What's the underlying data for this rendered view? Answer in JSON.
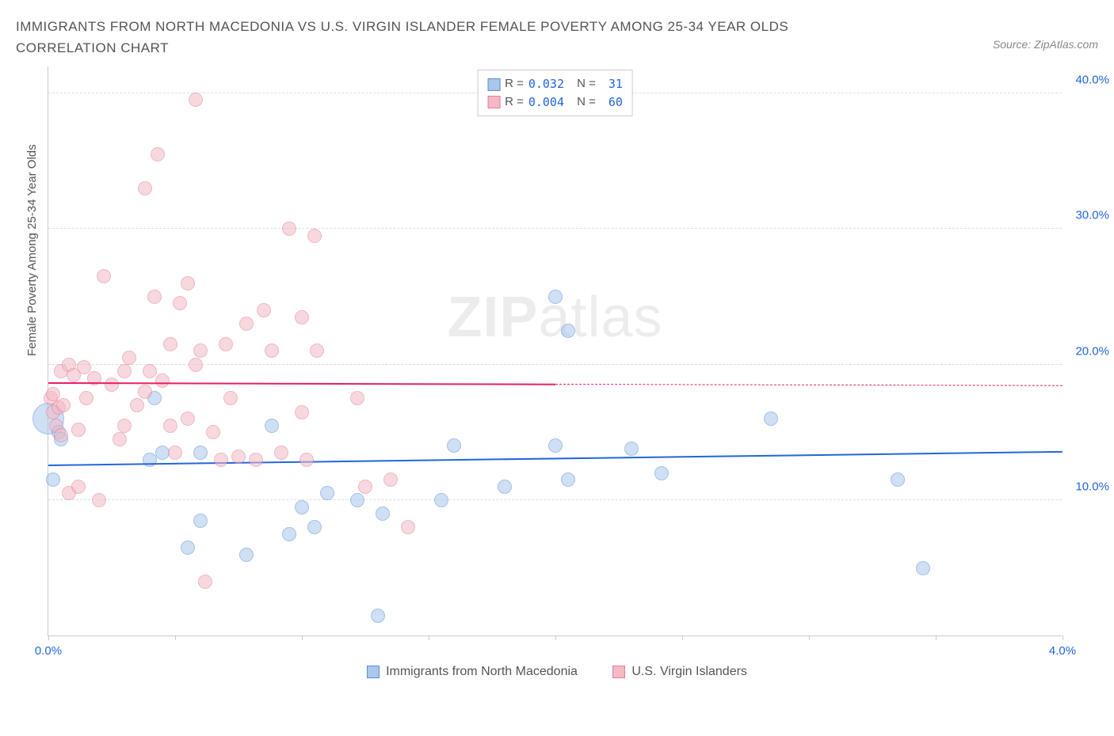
{
  "title": "IMMIGRANTS FROM NORTH MACEDONIA VS U.S. VIRGIN ISLANDER FEMALE POVERTY AMONG 25-34 YEAR OLDS CORRELATION CHART",
  "source": "Source: ZipAtlas.com",
  "watermark_bold": "ZIP",
  "watermark_light": "atlas",
  "chart": {
    "type": "scatter",
    "background_color": "#ffffff",
    "grid_color": "#dddddd",
    "axis_color": "#cccccc",
    "text_color": "#555555",
    "xlim": [
      0,
      4
    ],
    "ylim": [
      0,
      42
    ],
    "x_ticks": [
      0,
      0.5,
      1.0,
      1.5,
      2.0,
      2.5,
      3.0,
      3.5,
      4.0
    ],
    "x_tick_labels": {
      "0": "0.0%",
      "4": "4.0%"
    },
    "x_tick_label_color": "#2266dd",
    "y_gridlines": [
      10,
      20,
      30,
      40
    ],
    "y_tick_labels": [
      "10.0%",
      "20.0%",
      "30.0%",
      "40.0%"
    ],
    "y_tick_label_color": "#2266dd",
    "y_axis_title": "Female Poverty Among 25-34 Year Olds",
    "point_radius": 9,
    "point_opacity": 0.55,
    "point_border_width": 1.2,
    "series": [
      {
        "name": "Immigrants from North Macedonia",
        "color_fill": "#a9c7ec",
        "color_border": "#5a8fd6",
        "legend_color": "#2266dd",
        "R": "0.032",
        "N": "31",
        "trend": {
          "y_start": 12.5,
          "y_end": 13.5,
          "color": "#2266dd",
          "solid_fraction": 1.0
        },
        "points": [
          [
            0.0,
            16.0,
            20
          ],
          [
            0.04,
            15.0,
            9
          ],
          [
            0.02,
            11.5,
            9
          ],
          [
            0.05,
            14.5,
            9
          ],
          [
            0.42,
            17.5,
            9
          ],
          [
            0.45,
            13.5,
            9
          ],
          [
            0.55,
            6.5,
            9
          ],
          [
            0.6,
            8.5,
            9
          ],
          [
            0.78,
            6.0,
            9
          ],
          [
            0.88,
            15.5,
            9
          ],
          [
            0.95,
            7.5,
            9
          ],
          [
            1.0,
            9.5,
            9
          ],
          [
            1.05,
            8.0,
            9
          ],
          [
            1.1,
            10.5,
            9
          ],
          [
            1.22,
            10.0,
            9
          ],
          [
            1.32,
            9.0,
            9
          ],
          [
            1.3,
            1.5,
            9
          ],
          [
            1.55,
            10.0,
            9
          ],
          [
            1.6,
            14.0,
            9
          ],
          [
            1.8,
            11.0,
            9
          ],
          [
            2.0,
            14.0,
            9
          ],
          [
            2.0,
            25.0,
            9
          ],
          [
            2.05,
            22.5,
            9
          ],
          [
            2.05,
            11.5,
            9
          ],
          [
            2.3,
            13.8,
            9
          ],
          [
            2.42,
            12.0,
            9
          ],
          [
            2.85,
            16.0,
            9
          ],
          [
            3.35,
            11.5,
            9
          ],
          [
            3.45,
            5.0,
            9
          ],
          [
            0.4,
            13.0,
            9
          ],
          [
            0.6,
            13.5,
            9
          ]
        ]
      },
      {
        "name": "U.S. Virgin Islanders",
        "color_fill": "#f4b9c5",
        "color_border": "#e07f95",
        "legend_color": "#e91e63",
        "R": "0.004",
        "N": "60",
        "trend": {
          "y_start": 18.6,
          "y_end": 18.4,
          "color": "#e91e63",
          "solid_fraction": 0.5
        },
        "points": [
          [
            0.01,
            17.5,
            9
          ],
          [
            0.02,
            16.5,
            9
          ],
          [
            0.02,
            17.8,
            9
          ],
          [
            0.03,
            15.5,
            9
          ],
          [
            0.04,
            16.8,
            9
          ],
          [
            0.05,
            19.5,
            9
          ],
          [
            0.06,
            17.0,
            9
          ],
          [
            0.05,
            14.8,
            9
          ],
          [
            0.08,
            20.0,
            9
          ],
          [
            0.08,
            10.5,
            9
          ],
          [
            0.1,
            19.2,
            9
          ],
          [
            0.12,
            15.2,
            9
          ],
          [
            0.14,
            19.8,
            9
          ],
          [
            0.15,
            17.5,
            9
          ],
          [
            0.18,
            19.0,
            9
          ],
          [
            0.2,
            10.0,
            9
          ],
          [
            0.22,
            26.5,
            9
          ],
          [
            0.25,
            18.5,
            9
          ],
          [
            0.28,
            14.5,
            9
          ],
          [
            0.3,
            19.5,
            9
          ],
          [
            0.32,
            20.5,
            9
          ],
          [
            0.35,
            17.0,
            9
          ],
          [
            0.38,
            18.0,
            9
          ],
          [
            0.38,
            33.0,
            9
          ],
          [
            0.4,
            19.5,
            9
          ],
          [
            0.42,
            25.0,
            9
          ],
          [
            0.43,
            35.5,
            9
          ],
          [
            0.45,
            18.8,
            9
          ],
          [
            0.48,
            21.5,
            9
          ],
          [
            0.5,
            13.5,
            9
          ],
          [
            0.52,
            24.5,
            9
          ],
          [
            0.55,
            26.0,
            9
          ],
          [
            0.55,
            16.0,
            9
          ],
          [
            0.58,
            20.0,
            9
          ],
          [
            0.58,
            39.5,
            9
          ],
          [
            0.6,
            21.0,
            9
          ],
          [
            0.62,
            4.0,
            9
          ],
          [
            0.65,
            15.0,
            9
          ],
          [
            0.68,
            13.0,
            9
          ],
          [
            0.7,
            21.5,
            9
          ],
          [
            0.72,
            17.5,
            9
          ],
          [
            0.75,
            13.2,
            9
          ],
          [
            0.78,
            23.0,
            9
          ],
          [
            0.82,
            13.0,
            9
          ],
          [
            0.85,
            24.0,
            9
          ],
          [
            0.88,
            21.0,
            9
          ],
          [
            0.92,
            13.5,
            9
          ],
          [
            0.95,
            30.0,
            9
          ],
          [
            1.0,
            23.5,
            9
          ],
          [
            1.0,
            16.5,
            9
          ],
          [
            1.02,
            13.0,
            9
          ],
          [
            1.05,
            29.5,
            9
          ],
          [
            1.06,
            21.0,
            9
          ],
          [
            1.22,
            17.5,
            9
          ],
          [
            1.25,
            11.0,
            9
          ],
          [
            1.35,
            11.5,
            9
          ],
          [
            1.42,
            8.0,
            9
          ],
          [
            0.12,
            11.0,
            9
          ],
          [
            0.3,
            15.5,
            9
          ],
          [
            0.48,
            15.5,
            9
          ]
        ]
      }
    ]
  },
  "legend_top": {
    "r_label": "R =",
    "n_label": "N ="
  },
  "legend_bottom_labels": [
    "Immigrants from North Macedonia",
    "U.S. Virgin Islanders"
  ]
}
